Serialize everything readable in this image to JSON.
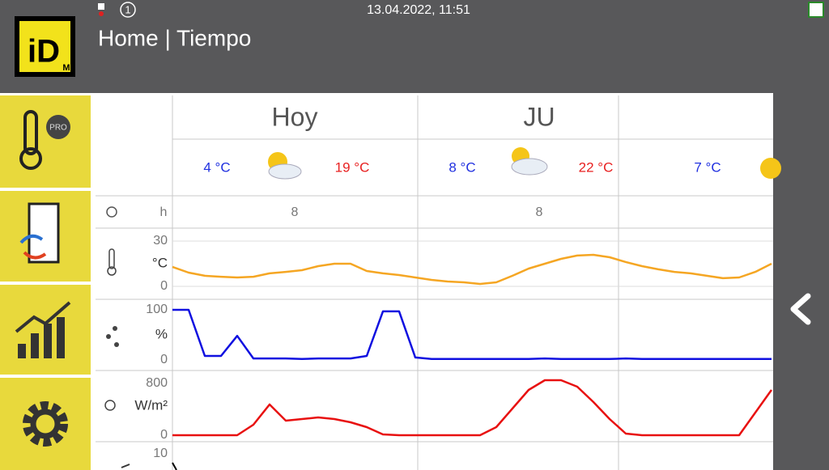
{
  "header": {
    "datetime": "13.04.2022, 11:51",
    "title": "Home | Tiempo",
    "alert": "1",
    "logo": "iD",
    "logo_sub": "M"
  },
  "sidebar": {
    "pro_badge": "PRO"
  },
  "days": [
    {
      "name": "Hoy",
      "min": "4 °C",
      "max": "19 °C",
      "sun_hours": "8"
    },
    {
      "name": "JU",
      "min": "8 °C",
      "max": "22 °C",
      "sun_hours": "8"
    },
    {
      "min": "7 °C"
    }
  ],
  "sun_hours_unit": "h",
  "charts": [
    {
      "unit": "°C",
      "ylim": [
        0,
        30
      ],
      "yticks": [
        0,
        30
      ],
      "color": "#f5a623",
      "values": [
        12.9,
        9.1,
        7,
        6.4,
        5.9,
        6.4,
        8.6,
        9.6,
        10.7,
        13.4,
        15,
        15,
        10.2,
        8.6,
        7.5,
        5.9,
        4.3,
        3.2,
        2.7,
        1.6,
        2.7,
        7,
        11.8,
        15,
        18.2,
        20.4,
        20.9,
        19.3,
        16.1,
        13.4,
        11.3,
        9.6,
        8.6,
        7,
        5.4,
        5.9,
        9.6,
        15
      ]
    },
    {
      "unit": "%",
      "ylim": [
        0,
        100
      ],
      "yticks": [
        0,
        100
      ],
      "color": "#1010e0",
      "values": [
        100,
        100,
        8,
        8,
        48,
        3,
        3,
        3,
        2,
        3,
        3,
        3,
        8,
        97,
        97,
        5,
        2,
        2,
        2,
        2,
        2,
        2,
        2,
        3,
        2,
        2,
        2,
        2,
        3,
        2,
        2,
        2,
        2,
        2,
        2,
        2,
        2,
        2
      ]
    },
    {
      "unit": "W/m²",
      "ylim": [
        0,
        800
      ],
      "yticks": [
        0,
        800
      ],
      "color": "#e81010",
      "values": [
        0,
        0,
        0,
        0,
        0,
        162,
        475,
        225,
        250,
        275,
        250,
        200,
        125,
        12,
        0,
        0,
        0,
        0,
        0,
        0,
        125,
        412,
        700,
        850,
        850,
        750,
        512,
        250,
        25,
        0,
        0,
        0,
        0,
        0,
        0,
        0,
        350,
        700
      ]
    },
    {
      "yticks": [
        10
      ]
    }
  ]
}
